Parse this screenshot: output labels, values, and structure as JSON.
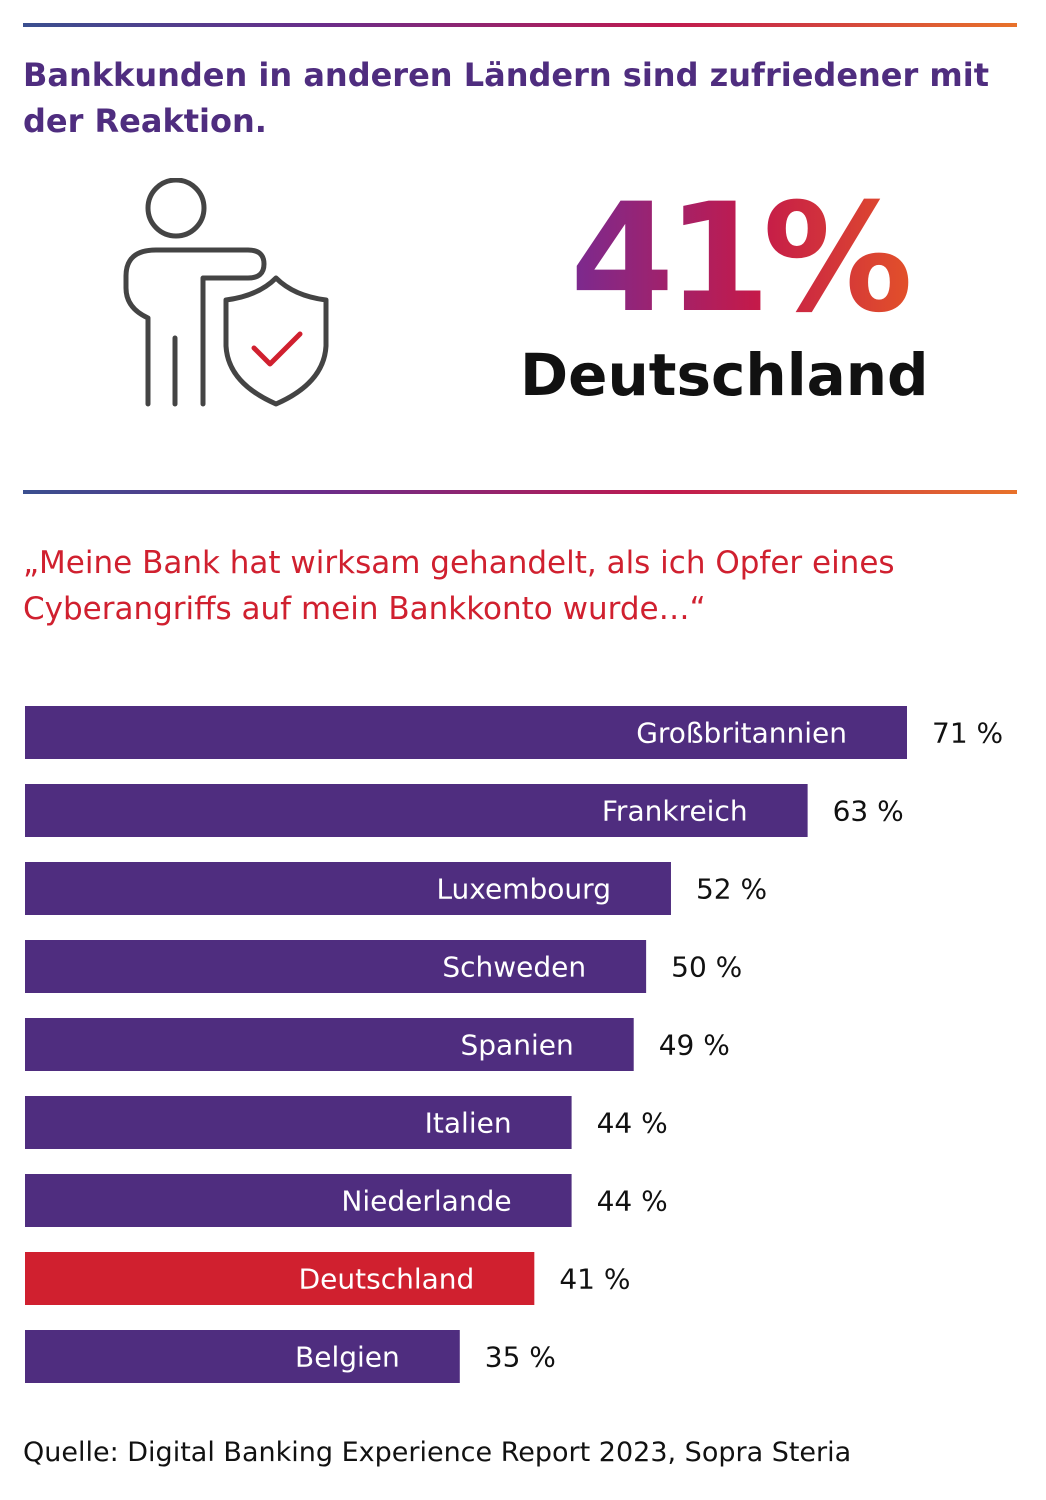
{
  "header": {
    "title": "Bankkunden in anderen Ländern sind zufriedener mit der Reaktion."
  },
  "highlight": {
    "value": "41%",
    "country": "Deutschland",
    "icon": "person-with-shield-icon"
  },
  "quote": "„Meine Bank hat wirksam gehandelt, als ich Opfer eines Cyberangriffs auf mein Bankkonto wurde…“",
  "colors": {
    "bar": "#4f2d7f",
    "highlight_bar": "#d0202f",
    "headline": "#4f2d7f",
    "quote": "#d0202f"
  },
  "chart_data": {
    "type": "bar",
    "orientation": "horizontal",
    "categories": [
      "Großbritannien",
      "Frankreich",
      "Luxembourg",
      "Schweden",
      "Spanien",
      "Italien",
      "Niederlande",
      "Deutschland",
      "Belgien"
    ],
    "values": [
      71,
      63,
      52,
      50,
      49,
      44,
      44,
      41,
      35
    ],
    "value_labels": [
      "71 %",
      "63 %",
      "52 %",
      "50 %",
      "49 %",
      "44 %",
      "44 %",
      "41 %",
      "35 %"
    ],
    "highlight": "Deutschland",
    "unit": "%",
    "xlim": [
      0,
      100
    ],
    "grid": false
  },
  "footer": {
    "source": "Quelle: Digital Banking Experience Report 2023, Sopra Steria"
  }
}
